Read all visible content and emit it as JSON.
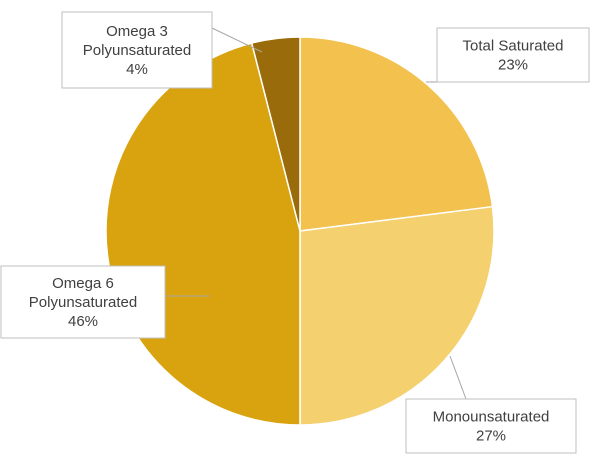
{
  "chart_data": {
    "type": "pie",
    "title": "",
    "start_angle_deg": 0,
    "direction": "clockwise",
    "slices": [
      {
        "label_line1": "Total Saturated",
        "label_line2": "",
        "percent_label": "23%",
        "value": 23,
        "color": "#f2c14e"
      },
      {
        "label_line1": "Monounsaturated",
        "label_line2": "",
        "percent_label": "27%",
        "value": 27,
        "color": "#f5d06e"
      },
      {
        "label_line1": "Omega 6",
        "label_line2": "Polyunsaturated",
        "percent_label": "46%",
        "value": 46,
        "color": "#d8a30f"
      },
      {
        "label_line1": "Omega 3",
        "label_line2": "Polyunsaturated",
        "percent_label": "4%",
        "value": 4,
        "color": "#9a6b0a"
      }
    ],
    "legend": "none",
    "data_labels": "callouts"
  }
}
